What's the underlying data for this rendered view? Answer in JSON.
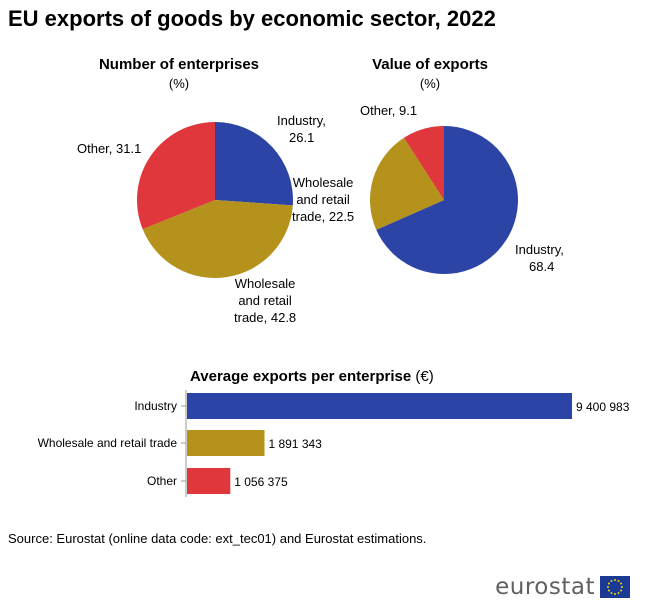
{
  "title": "EU exports of goods by economic sector, 2022",
  "colors": {
    "industry": "#2b44a5",
    "wholesale": "#b4921c",
    "other": "#e0373d",
    "logo_text": "#606060",
    "flag_bg": "#1a3a94",
    "flag_stars": "#ffdd00"
  },
  "chart_data": [
    {
      "type": "pie",
      "title": "Number of enterprises",
      "unit": "(%)",
      "slices": [
        {
          "label": "Industry",
          "value": 26.1,
          "color": "#2b44a5"
        },
        {
          "label": "Wholesale and retail trade",
          "value": 42.8,
          "color": "#b4921c"
        },
        {
          "label": "Other",
          "value": 31.1,
          "color": "#e0373d"
        }
      ]
    },
    {
      "type": "pie",
      "title": "Value of exports",
      "unit": "(%)",
      "slices": [
        {
          "label": "Industry",
          "value": 68.4,
          "color": "#2b44a5"
        },
        {
          "label": "Wholesale and retail trade",
          "value": 22.5,
          "color": "#b4921c"
        },
        {
          "label": "Other",
          "value": 9.1,
          "color": "#e0373d"
        }
      ]
    },
    {
      "type": "bar",
      "orientation": "horizontal",
      "title": "Average exports per enterprise",
      "unit": "(€)",
      "categories": [
        "Industry",
        "Wholesale and retail trade",
        "Other"
      ],
      "values": [
        9400983,
        1891343,
        1056375
      ],
      "value_labels": [
        "9 400 983",
        "1 891 343",
        "1 056 375"
      ],
      "colors": [
        "#2b44a5",
        "#b4921c",
        "#e0373d"
      ]
    }
  ],
  "pie_labels": {
    "left": {
      "industry": [
        "Industry,",
        "26.1"
      ],
      "wholesale": [
        "Wholesale",
        "and retail",
        "trade, 42.8"
      ],
      "other": [
        "Other, 31.1"
      ]
    },
    "right": {
      "industry": [
        "Industry,",
        "68.4"
      ],
      "wholesale": [
        "Wholesale",
        "and retail",
        "trade, 22.5"
      ],
      "other": [
        "Other, 9.1"
      ]
    }
  },
  "source": "Source: Eurostat (online data code: ext_tec01) and Eurostat estimations.",
  "logo": "eurostat"
}
